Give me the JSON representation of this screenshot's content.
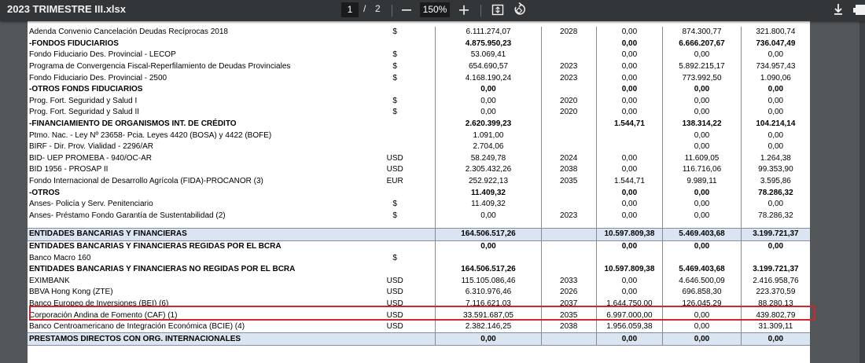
{
  "toolbar": {
    "title": "2023 TRIMESTRE III.xlsx",
    "page_current": "1",
    "page_separator": "/",
    "page_total": "2",
    "zoom": "150%",
    "icons": [
      "zoom-out-icon",
      "zoom-in-icon",
      "fit-page-icon",
      "rotate-icon",
      "download-icon",
      "print-icon"
    ]
  },
  "table": {
    "rows": [
      {
        "desc": "Adenda Convenio Cancelación Deudas Recíprocas 2018",
        "cur": "$",
        "amt": "6.111.274,07",
        "year": "2028",
        "c1": "0,00",
        "c2": "874.300,77",
        "c3": "321.800,74",
        "style": "n"
      },
      {
        "desc": "-FONDOS FIDUCIARIOS",
        "cur": "",
        "amt": "4.875.950,23",
        "year": "",
        "c1": "0,00",
        "c2": "6.666.207,67",
        "c3": "736.047,49",
        "style": "b"
      },
      {
        "desc": "Fondo Fiduciario Des. Provincial - LECOP",
        "cur": "$",
        "amt": "53.069,41",
        "year": "",
        "c1": "0,00",
        "c2": "0,00",
        "c3": "0,00",
        "style": "n"
      },
      {
        "desc": "Programa de Convergencia Fiscal-Reperfilamiento de Deudas Provinciales",
        "cur": "$",
        "amt": "654.690,57",
        "year": "2023",
        "c1": "0,00",
        "c2": "5.892.215,17",
        "c3": "734.957,43",
        "style": "n"
      },
      {
        "desc": "Fondo Fiduciario Des. Provincial - 2500",
        "cur": "$",
        "amt": "4.168.190,24",
        "year": "2023",
        "c1": "0,00",
        "c2": "773.992,50",
        "c3": "1.090,06",
        "style": "n"
      },
      {
        "desc": "-OTROS FONDS FIDUCIARIOS",
        "cur": "",
        "amt": "0,00",
        "year": "",
        "c1": "0,00",
        "c2": "0,00",
        "c3": "0,00",
        "style": "b"
      },
      {
        "desc": "Prog. Fort. Seguridad y Salud I",
        "cur": "$",
        "amt": "0,00",
        "year": "2020",
        "c1": "0,00",
        "c2": "0,00",
        "c3": "0,00",
        "style": "n"
      },
      {
        "desc": "Prog. Fort. Seguridad y Salud II",
        "cur": "$",
        "amt": "0,00",
        "year": "2020",
        "c1": "0,00",
        "c2": "0,00",
        "c3": "0,00",
        "style": "n"
      },
      {
        "desc": "-FINANCIAMIENTO DE ORGANISMOS INT. DE CRÉDITO",
        "cur": "",
        "amt": "2.620.399,23",
        "year": "",
        "c1": "1.544,71",
        "c2": "138.314,22",
        "c3": "104.214,14",
        "style": "b"
      },
      {
        "desc": "Ptmo. Nac. - Ley Nº 23658- Pcia. Leyes 4420 (BOSA) y 4422 (BOFE)",
        "cur": "",
        "amt": "1.091,00",
        "year": "",
        "c1": "",
        "c2": "0,00",
        "c3": "0,00",
        "style": "n"
      },
      {
        "desc": "BIRF - Dir. Prov. Vialidad - 2296/AR",
        "cur": "",
        "amt": "2.704,06",
        "year": "",
        "c1": "",
        "c2": "0,00",
        "c3": "0,00",
        "style": "n"
      },
      {
        "desc": "BID- UEP PROMEBA - 940/OC-AR",
        "cur": "USD",
        "amt": "58.249,78",
        "year": "2024",
        "c1": "0,00",
        "c2": "11.609,05",
        "c3": "1.264,38",
        "style": "n"
      },
      {
        "desc": "BID 1956 - PROSAP II",
        "cur": "USD",
        "amt": "2.305.432,26",
        "year": "2038",
        "c1": "0,00",
        "c2": "116.716,06",
        "c3": "99.353,90",
        "style": "n"
      },
      {
        "desc": "Fondo Internacional de Desarrollo Agrícola (FIDA)-PROCANOR (3)",
        "cur": "EUR",
        "amt": "252.922,13",
        "year": "2035",
        "c1": "1.544,71",
        "c2": "9.989,11",
        "c3": "3.595,86",
        "style": "n"
      },
      {
        "desc": "-OTROS",
        "cur": "",
        "amt": "11.409,32",
        "year": "",
        "c1": "0,00",
        "c2": "0,00",
        "c3": "78.286,32",
        "style": "b"
      },
      {
        "desc": "Anses- Policía y Serv. Penitenciario",
        "cur": "$",
        "amt": "11.409,32",
        "year": "",
        "c1": "0,00",
        "c2": "0,00",
        "c3": "0,00",
        "style": "n"
      },
      {
        "desc": "Anses- Préstamo Fondo Garantía de Sustentabilidad (2)",
        "cur": "$",
        "amt": "0,00",
        "year": "2023",
        "c1": "0,00",
        "c2": "0,00",
        "c3": "78.286,32",
        "style": "n"
      },
      {
        "desc": "",
        "cur": "",
        "amt": "",
        "year": "",
        "c1": "",
        "c2": "",
        "c3": "",
        "style": "spacer"
      },
      {
        "desc": "ENTIDADES BANCARIAS Y FINANCIERAS",
        "cur": "",
        "amt": "164.506.517,26",
        "year": "",
        "c1": "10.597.809,38",
        "c2": "5.469.403,68",
        "c3": "3.199.721,37",
        "style": "band"
      },
      {
        "desc": "ENTIDADES BANCARIAS Y FINANCIERAS REGIDAS POR EL BCRA",
        "cur": "",
        "amt": "0,00",
        "year": "",
        "c1": "0,00",
        "c2": "0,00",
        "c3": "0,00",
        "style": "b"
      },
      {
        "desc": "Banco Macro 160",
        "cur": "$",
        "amt": "",
        "year": "",
        "c1": "",
        "c2": "",
        "c3": "",
        "style": "n"
      },
      {
        "desc": "ENTIDADES BANCARIAS Y FINANCIERAS  NO REGIDAS POR EL BCRA",
        "cur": "",
        "amt": "164.506.517,26",
        "year": "",
        "c1": "10.597.809,38",
        "c2": "5.469.403,68",
        "c3": "3.199.721,37",
        "style": "b"
      },
      {
        "desc": "EXIMBANK",
        "cur": "USD",
        "amt": "115.105.086,46",
        "year": "2033",
        "c1": "0,00",
        "c2": "4.646.500,09",
        "c3": "2.416.958,76",
        "style": "n"
      },
      {
        "desc": "BBVA Hong Kong (ZTE)",
        "cur": "USD",
        "amt": "6.310.976,46",
        "year": "2026",
        "c1": "0,00",
        "c2": "696.858,30",
        "c3": "223.370,59",
        "style": "n"
      },
      {
        "desc": "Banco Europeo de Inversiones (BEI) (6)",
        "cur": "USD",
        "amt": "7.116.621,03",
        "year": "2037",
        "c1": "1.644.750,00",
        "c2": "126.045,29",
        "c3": "88.280,13",
        "style": "n"
      },
      {
        "desc": "Corporación Andina de Fomento (CAF) (1)",
        "cur": "USD",
        "amt": "33.591.687,05",
        "year": "2035",
        "c1": "6.997.000,00",
        "c2": "0,00",
        "c3": "439.802,79",
        "style": "n"
      },
      {
        "desc": "Banco Centroamericano de Integración Económica (BCIE) (4)",
        "cur": "USD",
        "amt": "2.382.146,25",
        "year": "2038",
        "c1": "1.956.059,38",
        "c2": "0,00",
        "c3": "31.309,11",
        "style": "n"
      },
      {
        "desc": "PRESTAMOS DIRECTOS CON ORG. INTERNACIONALES",
        "cur": "",
        "amt": "0,00",
        "year": "",
        "c1": "0,00",
        "c2": "0,00",
        "c3": "0,00",
        "style": "band"
      }
    ]
  }
}
